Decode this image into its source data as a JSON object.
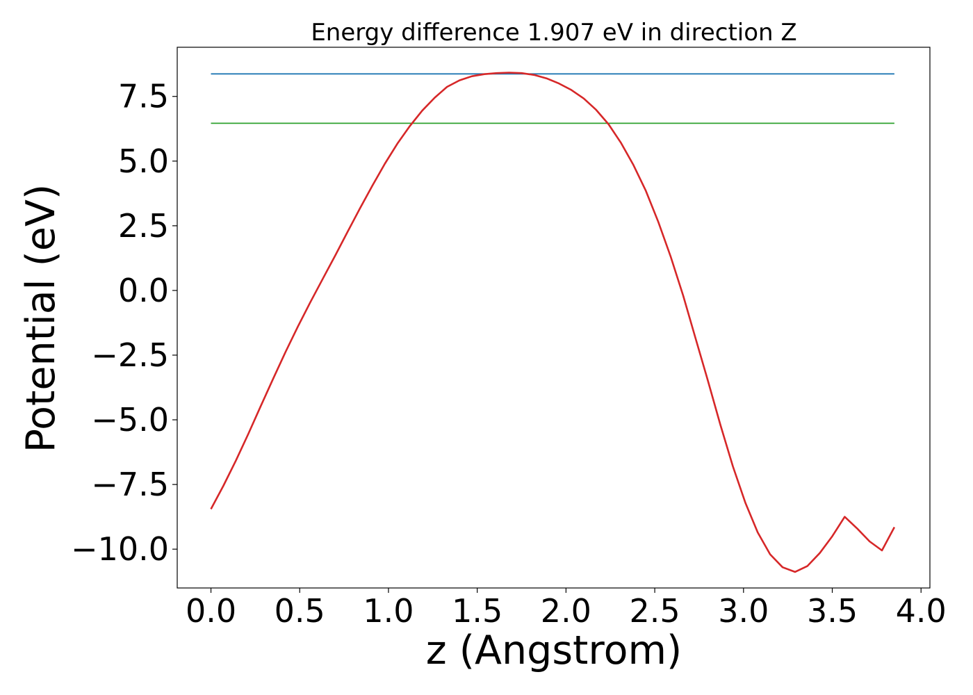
{
  "chart_data": {
    "type": "line",
    "title": "Energy difference 1.907 eV in direction Z",
    "xlabel": "z (Angstrom)",
    "ylabel": "Potential (eV)",
    "xlim": [
      -0.19,
      4.05
    ],
    "ylim": [
      -11.5,
      9.4
    ],
    "grid": false,
    "xticks": [
      0.0,
      0.5,
      1.0,
      1.5,
      2.0,
      2.5,
      3.0,
      3.5,
      4.0
    ],
    "xtick_labels": [
      "0.0",
      "0.5",
      "1.0",
      "1.5",
      "2.0",
      "2.5",
      "3.0",
      "3.5",
      "4.0"
    ],
    "yticks": [
      -10.0,
      -7.5,
      -5.0,
      -2.5,
      0.0,
      2.5,
      5.0,
      7.5
    ],
    "ytick_labels": [
      "−10.0",
      "−7.5",
      "−5.0",
      "−2.5",
      "0.0",
      "2.5",
      "5.0",
      "7.5"
    ],
    "series": [
      {
        "color": "#1f77b4",
        "x": [
          0.0,
          3.85
        ],
        "y": [
          8.37,
          8.37
        ]
      },
      {
        "color": "#2ca02c",
        "x": [
          0.0,
          3.85
        ],
        "y": [
          6.46,
          6.46
        ]
      },
      {
        "color": "#d62728",
        "x": [
          0.0,
          0.07,
          0.14,
          0.21,
          0.28,
          0.35,
          0.42,
          0.49,
          0.56,
          0.63,
          0.7,
          0.77,
          0.84,
          0.91,
          0.98,
          1.05,
          1.12,
          1.19,
          1.26,
          1.33,
          1.4,
          1.47,
          1.54,
          1.61,
          1.68,
          1.75,
          1.82,
          1.89,
          1.96,
          2.03,
          2.1,
          2.17,
          2.24,
          2.31,
          2.38,
          2.45,
          2.52,
          2.59,
          2.66,
          2.73,
          2.8,
          2.87,
          2.94,
          3.01,
          3.08,
          3.15,
          3.22,
          3.29,
          3.36,
          3.43,
          3.5,
          3.57,
          3.64,
          3.71,
          3.78,
          3.85
        ],
        "y": [
          -8.45,
          -7.55,
          -6.58,
          -5.55,
          -4.48,
          -3.42,
          -2.38,
          -1.39,
          -0.45,
          0.45,
          1.35,
          2.27,
          3.18,
          4.06,
          4.9,
          5.67,
          6.35,
          6.95,
          7.45,
          7.87,
          8.12,
          8.28,
          8.36,
          8.4,
          8.42,
          8.4,
          8.33,
          8.2,
          8.0,
          7.75,
          7.42,
          6.98,
          6.42,
          5.7,
          4.85,
          3.85,
          2.65,
          1.3,
          -0.2,
          -1.85,
          -3.5,
          -5.2,
          -6.8,
          -8.2,
          -9.35,
          -10.2,
          -10.7,
          -10.88,
          -10.65,
          -10.15,
          -9.5,
          -8.75,
          -9.2,
          -9.7,
          -10.05,
          -9.15
        ]
      }
    ]
  }
}
